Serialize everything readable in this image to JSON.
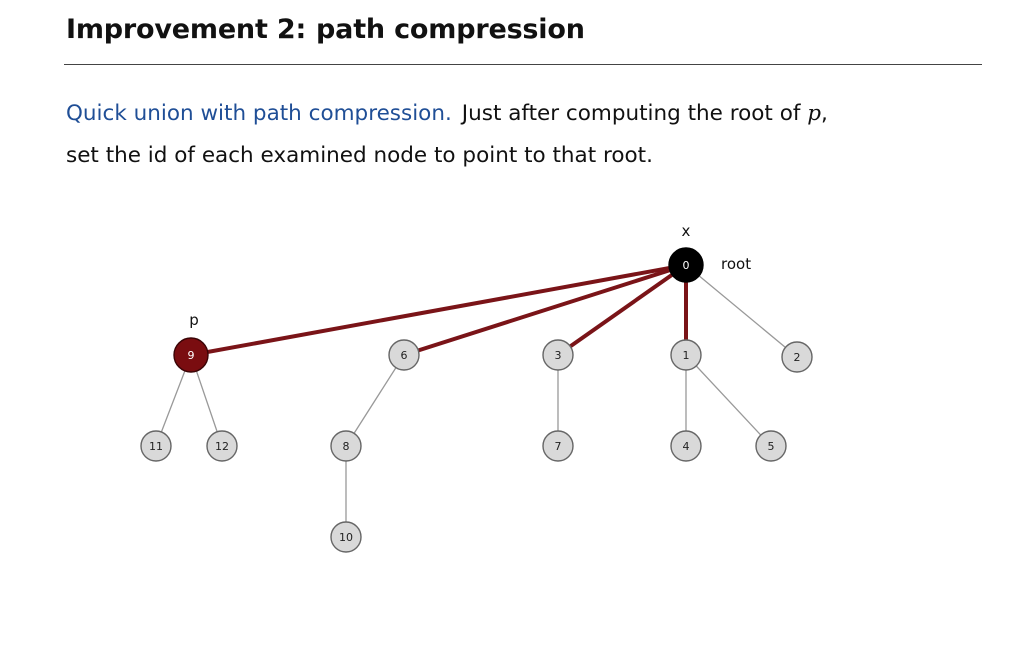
{
  "slide": {
    "title_part1": "Improvement 2:",
    "title_part2": "path compression",
    "lead": "Quick union with path compression.",
    "text_part1": "Just after computing the root of ",
    "text_var": "p",
    "text_part2": ",",
    "text_line2": "set the id of each examined node to point to that root."
  },
  "diagram": {
    "labels": {
      "x": "x",
      "root": "root",
      "p": "p"
    },
    "colors": {
      "node_fill": "#d9d9d9",
      "node_stroke": "#666666",
      "root_fill": "#000000",
      "highlight_fill": "#7a0d10",
      "highlight_edge": "#7a1418",
      "normal_edge": "#999999"
    },
    "nodes": [
      {
        "id": "0",
        "style": "root"
      },
      {
        "id": "9",
        "style": "highlight"
      },
      {
        "id": "6",
        "style": "normal"
      },
      {
        "id": "3",
        "style": "normal"
      },
      {
        "id": "1",
        "style": "normal"
      },
      {
        "id": "2",
        "style": "normal"
      },
      {
        "id": "11",
        "style": "normal"
      },
      {
        "id": "12",
        "style": "normal"
      },
      {
        "id": "8",
        "style": "normal"
      },
      {
        "id": "7",
        "style": "normal"
      },
      {
        "id": "4",
        "style": "normal"
      },
      {
        "id": "5",
        "style": "normal"
      },
      {
        "id": "10",
        "style": "normal"
      }
    ],
    "edges": [
      {
        "from": "0",
        "to": "9",
        "highlight": true
      },
      {
        "from": "0",
        "to": "6",
        "highlight": true
      },
      {
        "from": "0",
        "to": "3",
        "highlight": true
      },
      {
        "from": "0",
        "to": "1",
        "highlight": true
      },
      {
        "from": "0",
        "to": "2",
        "highlight": false
      },
      {
        "from": "9",
        "to": "11",
        "highlight": false
      },
      {
        "from": "9",
        "to": "12",
        "highlight": false
      },
      {
        "from": "6",
        "to": "8",
        "highlight": false
      },
      {
        "from": "8",
        "to": "10",
        "highlight": false
      },
      {
        "from": "3",
        "to": "7",
        "highlight": false
      },
      {
        "from": "1",
        "to": "4",
        "highlight": false
      },
      {
        "from": "1",
        "to": "5",
        "highlight": false
      }
    ]
  }
}
